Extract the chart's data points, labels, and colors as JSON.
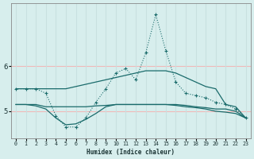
{
  "xlabel": "Humidex (Indice chaleur)",
  "x": [
    0,
    1,
    2,
    3,
    4,
    5,
    6,
    7,
    8,
    9,
    10,
    11,
    12,
    13,
    14,
    15,
    16,
    17,
    18,
    19,
    20,
    21,
    22,
    23
  ],
  "line_top": [
    5.5,
    5.5,
    5.5,
    5.5,
    5.5,
    5.5,
    5.55,
    5.6,
    5.65,
    5.7,
    5.75,
    5.8,
    5.85,
    5.9,
    5.9,
    5.9,
    5.85,
    5.75,
    5.65,
    5.55,
    5.5,
    5.15,
    5.1,
    4.85
  ],
  "line_flat1": [
    5.15,
    5.15,
    5.15,
    5.1,
    5.1,
    5.1,
    5.1,
    5.1,
    5.12,
    5.13,
    5.15,
    5.15,
    5.15,
    5.15,
    5.15,
    5.15,
    5.15,
    5.13,
    5.1,
    5.08,
    5.05,
    5.05,
    5.0,
    4.85
  ],
  "line_flat2": [
    5.15,
    5.15,
    5.12,
    5.05,
    4.85,
    4.7,
    4.72,
    4.82,
    4.95,
    5.1,
    5.15,
    5.15,
    5.15,
    5.15,
    5.15,
    5.15,
    5.13,
    5.1,
    5.08,
    5.05,
    5.0,
    4.98,
    4.95,
    4.85
  ],
  "line_main": [
    5.5,
    5.5,
    5.5,
    5.4,
    4.9,
    4.65,
    4.65,
    4.85,
    5.2,
    5.5,
    5.85,
    5.95,
    5.7,
    6.3,
    7.15,
    6.35,
    5.65,
    5.4,
    5.35,
    5.3,
    5.2,
    5.15,
    5.05,
    4.85
  ],
  "bg_color": "#d7eeed",
  "line_color": "#1a6b6b",
  "grid_h_color": "#f0b8b8",
  "grid_v_color": "#c8e0e0",
  "ylim": [
    4.4,
    7.4
  ],
  "yticks": [
    5,
    6
  ],
  "xlim": [
    -0.5,
    23.5
  ]
}
